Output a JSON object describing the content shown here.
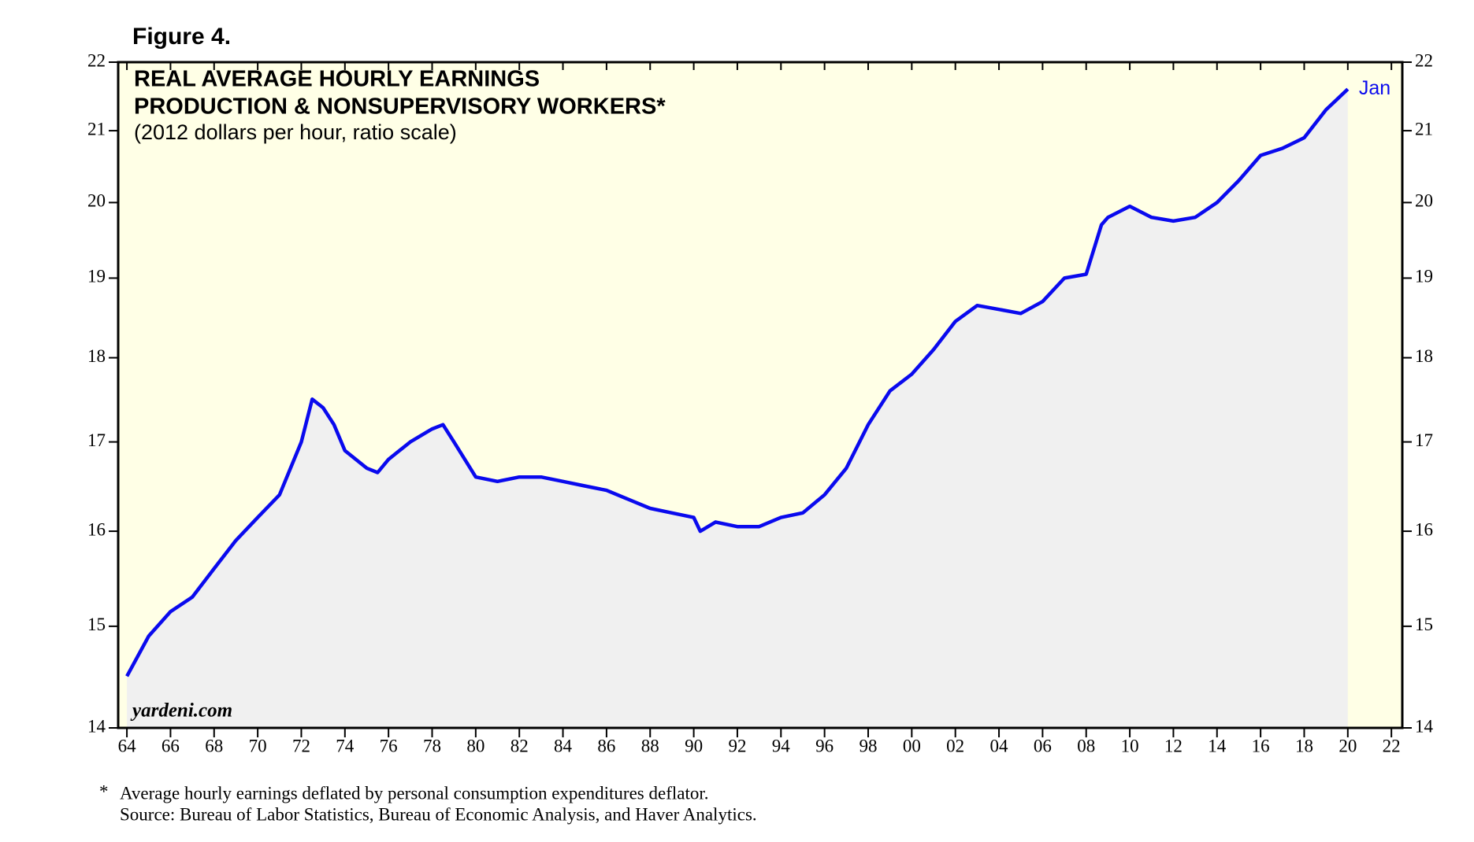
{
  "figure_label": "Figure 4.",
  "chart_data": {
    "type": "area",
    "title": [
      "REAL AVERAGE HOURLY EARNINGS",
      "PRODUCTION & NONSUPERVISORY WORKERS*"
    ],
    "subtitle": "(2012 dollars per hour, ratio scale)",
    "watermark": "yardeni.com",
    "annotation": "Jan",
    "color": "#0a0aee",
    "fill_color": "#f0f0f0",
    "background": "#ffffe6",
    "log_scale": true,
    "x": [
      1964,
      1965,
      1966,
      1967,
      1968,
      1969,
      1970,
      1971,
      1972,
      1972.5,
      1973,
      1973.5,
      1974,
      1975,
      1975.5,
      1976,
      1977,
      1978,
      1978.5,
      1979,
      1980,
      1981,
      1982,
      1983,
      1984,
      1985,
      1986,
      1987,
      1988,
      1989,
      1990,
      1990.3,
      1991,
      1992,
      1993,
      1994,
      1995,
      1996,
      1997,
      1998,
      1999,
      2000,
      2001,
      2002,
      2003,
      2004,
      2005,
      2006,
      2007,
      2008,
      2008.7,
      2009,
      2010,
      2011,
      2012,
      2013,
      2014,
      2015,
      2016,
      2017,
      2018,
      2019,
      2020
    ],
    "values": [
      14.5,
      14.9,
      15.15,
      15.3,
      15.6,
      15.9,
      16.15,
      16.4,
      17.0,
      17.5,
      17.4,
      17.2,
      16.9,
      16.7,
      16.65,
      16.8,
      17.0,
      17.15,
      17.2,
      17.0,
      16.6,
      16.55,
      16.6,
      16.6,
      16.55,
      16.5,
      16.45,
      16.35,
      16.25,
      16.2,
      16.15,
      16.0,
      16.1,
      16.05,
      16.05,
      16.15,
      16.2,
      16.4,
      16.7,
      17.2,
      17.6,
      17.8,
      18.1,
      18.45,
      18.65,
      18.6,
      18.55,
      18.7,
      19.0,
      19.05,
      19.7,
      19.8,
      19.95,
      19.8,
      19.75,
      19.8,
      20.0,
      20.3,
      20.65,
      20.75,
      20.9,
      21.3,
      21.6
    ],
    "xlim": [
      1963.6,
      2022.5
    ],
    "xticks": [
      {
        "value": 1964,
        "label": "64"
      },
      {
        "value": 1966,
        "label": "66"
      },
      {
        "value": 1968,
        "label": "68"
      },
      {
        "value": 1970,
        "label": "70"
      },
      {
        "value": 1972,
        "label": "72"
      },
      {
        "value": 1974,
        "label": "74"
      },
      {
        "value": 1976,
        "label": "76"
      },
      {
        "value": 1978,
        "label": "78"
      },
      {
        "value": 1980,
        "label": "80"
      },
      {
        "value": 1982,
        "label": "82"
      },
      {
        "value": 1984,
        "label": "84"
      },
      {
        "value": 1986,
        "label": "86"
      },
      {
        "value": 1988,
        "label": "88"
      },
      {
        "value": 1990,
        "label": "90"
      },
      {
        "value": 1992,
        "label": "92"
      },
      {
        "value": 1994,
        "label": "94"
      },
      {
        "value": 1996,
        "label": "96"
      },
      {
        "value": 1998,
        "label": "98"
      },
      {
        "value": 2000,
        "label": "00"
      },
      {
        "value": 2002,
        "label": "02"
      },
      {
        "value": 2004,
        "label": "04"
      },
      {
        "value": 2006,
        "label": "06"
      },
      {
        "value": 2008,
        "label": "08"
      },
      {
        "value": 2010,
        "label": "10"
      },
      {
        "value": 2012,
        "label": "12"
      },
      {
        "value": 2014,
        "label": "14"
      },
      {
        "value": 2016,
        "label": "16"
      },
      {
        "value": 2018,
        "label": "18"
      },
      {
        "value": 2020,
        "label": "20"
      },
      {
        "value": 2022,
        "label": "22"
      }
    ],
    "ylim": [
      14,
      22
    ],
    "yticks": [
      14,
      15,
      16,
      17,
      18,
      19,
      20,
      21,
      22
    ],
    "footnote_marker": "*",
    "footnote": "Average hourly earnings deflated by personal consumption expenditures deflator.",
    "source": "Source: Bureau of Labor Statistics, Bureau of Economic Analysis, and Haver Analytics."
  }
}
